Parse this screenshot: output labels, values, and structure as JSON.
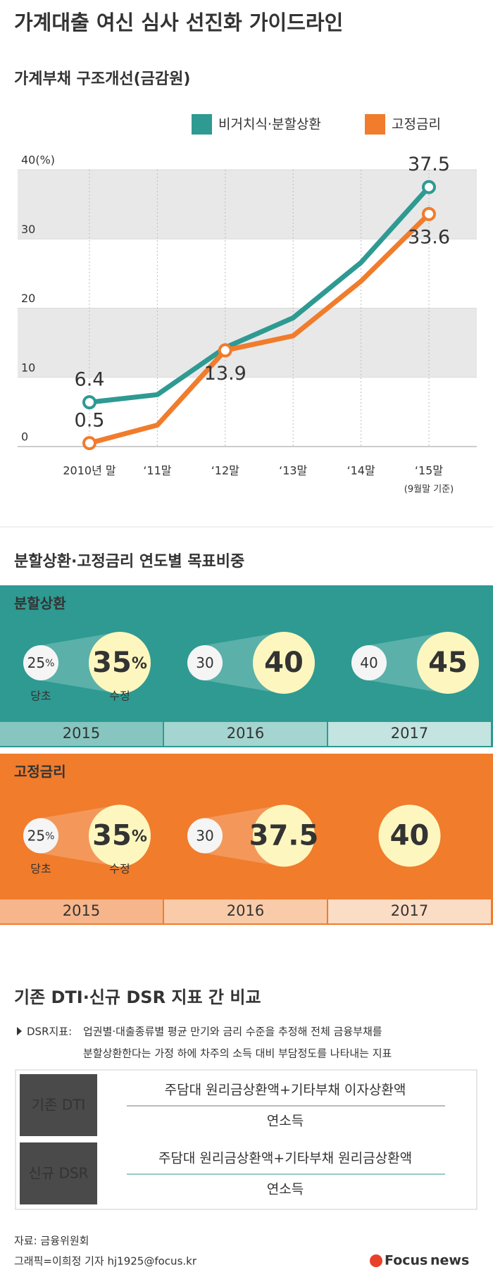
{
  "title": "가계대출 여신 심사 선진화 가이드라인",
  "chart_data": {
    "type": "line",
    "title": "가계부채 구조개선(금감원)",
    "categories": [
      "2010년 말",
      "‘11말",
      "‘12말",
      "‘13말",
      "‘14말",
      "‘15말"
    ],
    "annotation": "(9월말 기준)",
    "series": [
      {
        "name": "비거치식·분할상환",
        "color": "#2e9a92",
        "label_color": "#2e9a92",
        "values": [
          6.4,
          7.5,
          14.3,
          18.6,
          26.6,
          37.5
        ],
        "value_labels": [
          "6.4",
          null,
          null,
          null,
          null,
          "37.5"
        ]
      },
      {
        "name": "고정금리",
        "color": "#f07c2c",
        "label_color": "#8a5547",
        "values": [
          0.5,
          3.1,
          13.9,
          16,
          23.9,
          33.6
        ],
        "value_labels": [
          "0.5",
          null,
          "13.9",
          null,
          null,
          "33.6"
        ]
      }
    ],
    "ylim": [
      0,
      40
    ],
    "yticks": [
      0,
      10,
      20,
      30,
      {
        "value": 40,
        "label": "40(%)"
      }
    ],
    "grid": true,
    "legend": "top-right"
  },
  "targets": {
    "title": "분할상환·고정금리 연도별 목표비중",
    "panels": [
      {
        "name": "분할상환",
        "years": [
          {
            "year": "2015",
            "from": "25%",
            "to": "35%",
            "from_note": "당초",
            "to_note": "수정"
          },
          {
            "year": "2016",
            "from": "30",
            "to": "40"
          },
          {
            "year": "2017",
            "from": "40",
            "to": "45"
          }
        ]
      },
      {
        "name": "고정금리",
        "years": [
          {
            "year": "2015",
            "from": "25%",
            "to": "35%",
            "from_note": "당초",
            "to_note": "수정"
          },
          {
            "year": "2016",
            "from": "30",
            "to": "37.5"
          },
          {
            "year": "2017",
            "to": "40"
          }
        ]
      }
    ]
  },
  "comparison": {
    "title": "기존 DTI·신규 DSR 지표 간 비교",
    "note_label": "DSR지표:",
    "note": [
      "업권별·대출종류별 평균 만기와 금리 수준을 추정해 전체 금융부채를",
      "분할상환한다는 가정 하에 차주의 소득 대비 부담정도를 나타내는 지표"
    ],
    "rows": [
      {
        "name": "기존 DTI",
        "numerator": "주담대 원리금상환액+기타부채 이자상환액",
        "denominator": "연소득"
      },
      {
        "name": "신규 DSR",
        "numerator": "주담대 원리금상환액+기타부채 원리금상환액",
        "denominator": "연소득"
      }
    ]
  },
  "footer": {
    "source": "자료: 금융위원회",
    "credit": "그래픽=이희정 기자 hj1925@focus.kr",
    "logo": [
      "Focus",
      "news"
    ]
  }
}
